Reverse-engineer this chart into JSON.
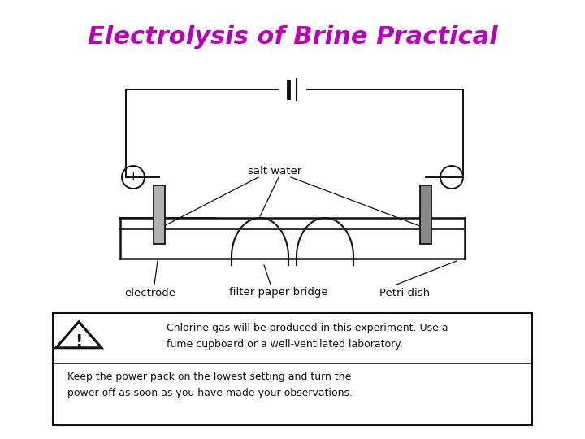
{
  "title": "Electrolysis of Brine Practical",
  "title_color": "#bb00bb",
  "title_fontsize": 22,
  "bg_color": "#ffffff",
  "dark": "#111111",
  "gray_light": "#b0b0b0",
  "gray_dark": "#888888",
  "warning_line1": "Chlorine gas will be produced in this experiment. Use a",
  "warning_line2": "fume cupboard or a well-ventilated laboratory.",
  "warning_line3": "Keep the power pack on the lowest setting and turn the",
  "warning_line4": "power off as soon as you have made your observations.",
  "label_electrode": "electrode",
  "label_filter": "filter paper bridge",
  "label_petri": "Petri dish",
  "label_salt_water": "salt water",
  "lw_circuit": 1.4,
  "lw_dish": 1.8,
  "lw_arch": 1.5,
  "lw_annot": 0.9
}
